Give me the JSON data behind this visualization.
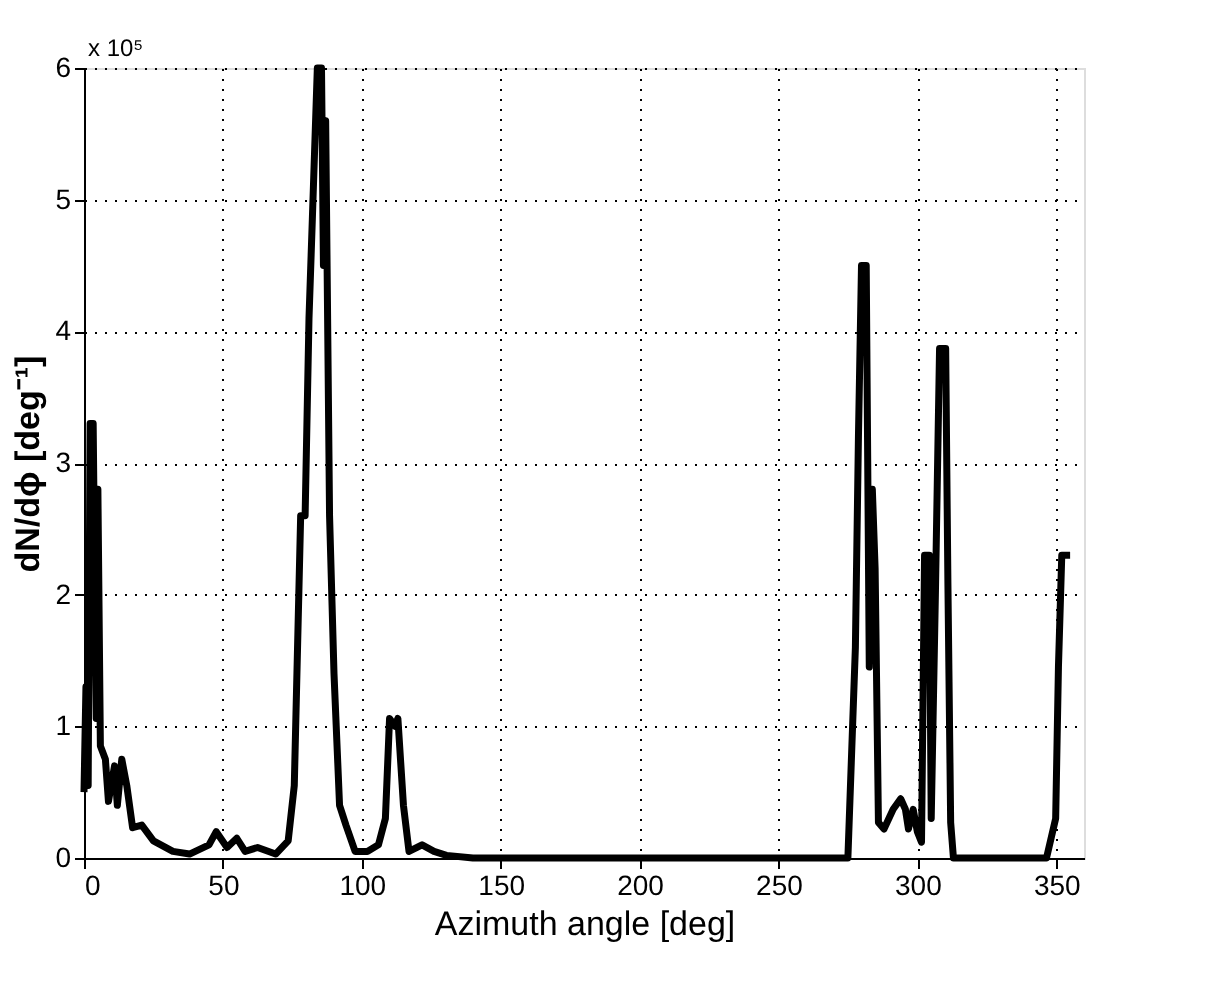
{
  "chart_data": {
    "type": "line",
    "xlabel": "Azimuth angle [deg]",
    "ylabel": "dN/dϕ [deg⁻¹]",
    "annotations": [
      "x 10⁵"
    ],
    "xlim": [
      0,
      360
    ],
    "xticks": [
      0,
      50,
      100,
      150,
      200,
      250,
      300,
      350
    ],
    "ylim": [
      0,
      6
    ],
    "yticks": [
      0,
      1,
      2,
      3,
      4,
      5,
      6
    ],
    "grid": true,
    "marker": "none",
    "line_style": "solid",
    "series": [
      {
        "color": "#000000",
        "x": [
          0,
          0.7,
          1.5,
          2.2,
          3.3,
          4.4,
          5,
          5.9,
          7.7,
          8.8,
          11,
          12,
          13.6,
          15.4,
          17.5,
          20.8,
          25,
          32,
          38,
          45,
          47.6,
          51.5,
          55,
          58,
          62.5,
          69,
          73.5,
          75.7,
          78,
          79.6,
          81,
          82.2,
          84,
          85.5,
          86.2,
          87,
          88.4,
          90,
          92,
          94.3,
          97.6,
          102,
          106,
          108.5,
          110,
          112,
          113,
          115,
          117,
          121.7,
          126,
          130.5,
          140,
          200,
          275,
          277.7,
          278.8,
          279.9,
          281.6,
          282.7,
          283.8,
          284.8,
          286,
          288,
          291.3,
          294,
          295.7,
          296.8,
          298.5,
          300,
          301.5,
          302.6,
          304.3,
          305,
          306.5,
          308,
          310.2,
          311,
          312,
          313,
          346.5,
          349.8,
          350.8,
          352,
          355
        ],
        "values": [
          0.5,
          1.3,
          0.55,
          3.3,
          3.3,
          1.06,
          2.8,
          0.85,
          0.75,
          0.43,
          0.7,
          0.4,
          0.75,
          0.55,
          0.23,
          0.25,
          0.13,
          0.05,
          0.03,
          0.1,
          0.2,
          0.08,
          0.15,
          0.05,
          0.08,
          0.03,
          0.13,
          0.55,
          2.6,
          2.6,
          4.1,
          4.85,
          6.0,
          6.0,
          4.5,
          5.6,
          2.6,
          1.4,
          0.4,
          0.25,
          0.05,
          0.05,
          0.1,
          0.3,
          1.06,
          1.0,
          1.06,
          0.4,
          0.05,
          0.1,
          0.05,
          0.02,
          0,
          0,
          0,
          1.6,
          3.2,
          4.5,
          4.5,
          1.45,
          2.8,
          2.2,
          0.27,
          0.22,
          0.37,
          0.45,
          0.37,
          0.22,
          0.37,
          0.2,
          0.12,
          2.3,
          2.3,
          0.3,
          2.0,
          3.87,
          3.87,
          2.1,
          0.27,
          0,
          0,
          0.3,
          1.45,
          2.3,
          2.3
        ]
      }
    ]
  }
}
